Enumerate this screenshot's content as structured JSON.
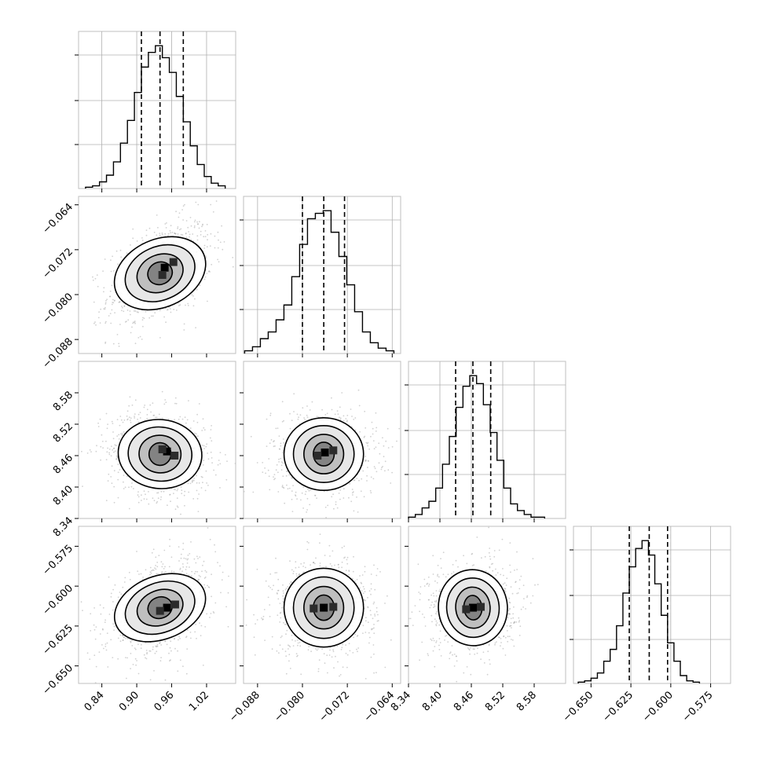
{
  "chart_data": {
    "type": "corner",
    "grid": true,
    "colors": {
      "frame": "#bfbfbf",
      "line": "#000000",
      "grid": "#b0b0b0",
      "scatter": "#9a9a9a"
    },
    "parameters": [
      {
        "index": 0,
        "range": [
          0.8,
          1.07
        ],
        "ticks": [
          0.84,
          0.9,
          0.96,
          1.02
        ],
        "tick_labels": [
          "0.84",
          "0.90",
          "0.96",
          "1.02"
        ],
        "mean": 0.955,
        "std": 0.027,
        "correlations_note": "",
        "quantiles": [
          0.908,
          0.94,
          0.98
        ],
        "hist_bin_edges": [
          0.812,
          0.824,
          0.836,
          0.848,
          0.86,
          0.872,
          0.884,
          0.896,
          0.908,
          0.92,
          0.932,
          0.944,
          0.956,
          0.968,
          0.98,
          0.992,
          1.004,
          1.016,
          1.028,
          1.04,
          1.052
        ],
        "hist_counts": [
          1,
          2,
          5,
          10,
          20,
          34,
          51,
          72,
          91,
          102,
          107,
          98,
          87,
          69,
          50,
          32,
          18,
          9,
          4,
          2
        ]
      },
      {
        "index": 1,
        "range": [
          -0.0905,
          -0.0625
        ],
        "ticks": [
          -0.088,
          -0.08,
          -0.072,
          -0.064
        ],
        "tick_labels": [
          "−0.088",
          "−0.080",
          "−0.072",
          "−0.064"
        ],
        "quantiles": [
          -0.08,
          -0.0762,
          -0.0725
        ],
        "hist_bin_edges": [
          -0.0903,
          -0.0889,
          -0.0875,
          -0.0861,
          -0.0847,
          -0.0833,
          -0.0819,
          -0.0805,
          -0.0791,
          -0.0777,
          -0.0763,
          -0.0749,
          -0.0735,
          -0.0721,
          -0.0707,
          -0.0693,
          -0.0679,
          -0.0665,
          -0.0651,
          -0.0637
        ],
        "hist_counts": [
          2,
          5,
          11,
          16,
          25,
          36,
          57,
          81,
          100,
          104,
          106,
          90,
          72,
          51,
          31,
          16,
          8,
          4,
          2
        ]
      },
      {
        "index": 2,
        "range": [
          8.34,
          8.64
        ],
        "ticks": [
          8.34,
          8.4,
          8.46,
          8.52,
          8.58
        ],
        "tick_labels": [
          "8.34",
          "8.40",
          "8.46",
          "8.52",
          "8.58"
        ],
        "quantiles": [
          8.43,
          8.463,
          8.497
        ],
        "hist_bin_edges": [
          8.34,
          8.353,
          8.366,
          8.379,
          8.392,
          8.405,
          8.418,
          8.431,
          8.444,
          8.457,
          8.47,
          8.483,
          8.496,
          8.509,
          8.522,
          8.535,
          8.548,
          8.561,
          8.574,
          8.587,
          8.6
        ],
        "hist_counts": [
          1,
          3,
          8,
          13,
          23,
          41,
          62,
          84,
          100,
          108,
          102,
          86,
          65,
          44,
          23,
          11,
          6,
          3,
          1,
          1
        ]
      },
      {
        "index": 3,
        "range": [
          -0.661,
          -0.5625
        ],
        "ticks": [
          -0.65,
          -0.625,
          -0.6,
          -0.575
        ],
        "tick_labels": [
          "−0.650",
          "−0.625",
          "−0.600",
          "−0.575"
        ],
        "quantiles": [
          -0.626,
          -0.6135,
          -0.602
        ],
        "hist_bin_edges": [
          -0.658,
          -0.654,
          -0.65,
          -0.646,
          -0.642,
          -0.638,
          -0.634,
          -0.63,
          -0.626,
          -0.622,
          -0.618,
          -0.614,
          -0.61,
          -0.606,
          -0.602,
          -0.598,
          -0.594,
          -0.59,
          -0.586,
          -0.582
        ],
        "hist_counts": [
          1,
          2,
          4,
          8,
          17,
          26,
          44,
          69,
          89,
          103,
          109,
          98,
          76,
          52,
          31,
          17,
          6,
          2,
          1
        ]
      }
    ],
    "pairs": [
      {
        "row": 1,
        "col": 0,
        "corr": 0.45,
        "centers": [
          [
            0.948,
            -0.0752
          ],
          [
            0.963,
            -0.0742
          ],
          [
            0.944,
            -0.0765
          ]
        ]
      },
      {
        "row": 2,
        "col": 0,
        "corr": -0.12,
        "centers": [
          [
            0.952,
            8.468
          ],
          [
            0.965,
            8.46
          ],
          [
            0.944,
            8.472
          ]
        ]
      },
      {
        "row": 2,
        "col": 1,
        "corr": 0.0,
        "centers": [
          [
            -0.076,
            8.466
          ],
          [
            -0.0745,
            8.47
          ],
          [
            -0.0773,
            8.46
          ]
        ]
      },
      {
        "row": 3,
        "col": 0,
        "corr": 0.42,
        "centers": [
          [
            0.952,
            -0.6135
          ],
          [
            0.966,
            -0.6115
          ],
          [
            0.94,
            -0.6155
          ]
        ]
      },
      {
        "row": 3,
        "col": 1,
        "corr": 0.0,
        "centers": [
          [
            -0.0762,
            -0.6135
          ],
          [
            -0.0745,
            -0.613
          ],
          [
            -0.078,
            -0.614
          ]
        ]
      },
      {
        "row": 3,
        "col": 2,
        "corr": 0.08,
        "centers": [
          [
            8.463,
            -0.6135
          ],
          [
            8.478,
            -0.613
          ],
          [
            8.45,
            -0.6145
          ]
        ]
      }
    ]
  }
}
